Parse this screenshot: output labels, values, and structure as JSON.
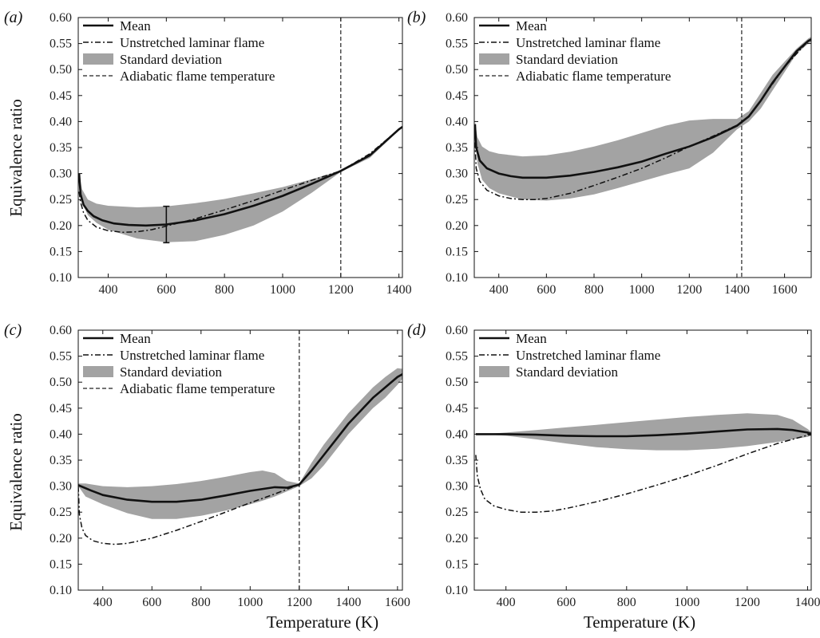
{
  "figure": {
    "xlabel": "Temperature (K)",
    "ylabel": "Equivalence ratio"
  },
  "colors": {
    "mean": "#111111",
    "laminar": "#111111",
    "std_band": "#a3a3a3",
    "adiabatic": "#222222"
  },
  "chart_data": [
    {
      "type": "line",
      "panel_label": "(a)",
      "xlabel": "",
      "ylabel": "Equivalence ratio",
      "xlim": [
        290,
        1420
      ],
      "ylim": [
        0.1,
        0.6
      ],
      "xticks": [
        400,
        600,
        800,
        1000,
        1200,
        1400
      ],
      "yticks": [
        0.1,
        0.15,
        0.2,
        0.25,
        0.3,
        0.35,
        0.4,
        0.45,
        0.5,
        0.55,
        0.6
      ],
      "legend": {
        "position": "top-left",
        "entries": [
          "Mean",
          "Unstretched laminar flame",
          "Standard deviation",
          "Adiabatic flame temperature"
        ]
      },
      "adiabatic_temperature": 1200,
      "error_bar": {
        "x": 600,
        "low": 0.167,
        "high": 0.237
      },
      "series": [
        {
          "name": "Mean",
          "x": [
            300,
            305,
            315,
            330,
            350,
            380,
            420,
            470,
            530,
            600,
            700,
            800,
            900,
            1000,
            1100,
            1200,
            1300,
            1400,
            1420
          ],
          "y": [
            0.3,
            0.26,
            0.24,
            0.228,
            0.218,
            0.21,
            0.204,
            0.201,
            0.2,
            0.202,
            0.21,
            0.222,
            0.238,
            0.257,
            0.28,
            0.305,
            0.335,
            0.385,
            0.393
          ]
        },
        {
          "name": "Unstretched laminar flame",
          "x": [
            300,
            305,
            315,
            330,
            360,
            400,
            450,
            500,
            550,
            600,
            700,
            800,
            900,
            1000,
            1100,
            1200,
            1300,
            1400,
            1420
          ],
          "y": [
            0.265,
            0.245,
            0.225,
            0.21,
            0.197,
            0.19,
            0.187,
            0.188,
            0.192,
            0.199,
            0.213,
            0.23,
            0.248,
            0.268,
            0.287,
            0.305,
            0.338,
            0.385,
            0.393
          ]
        },
        {
          "name": "Standard deviation",
          "x": [
            300,
            310,
            330,
            360,
            400,
            500,
            600,
            700,
            800,
            900,
            1000,
            1100,
            1200,
            1300,
            1400,
            1420
          ],
          "upper": [
            0.3,
            0.27,
            0.25,
            0.242,
            0.238,
            0.235,
            0.237,
            0.243,
            0.251,
            0.262,
            0.274,
            0.289,
            0.306,
            0.338,
            0.385,
            0.393
          ],
          "lower": [
            0.3,
            0.245,
            0.22,
            0.205,
            0.192,
            0.175,
            0.168,
            0.17,
            0.182,
            0.2,
            0.227,
            0.263,
            0.303,
            0.33,
            0.383,
            0.393
          ]
        }
      ]
    },
    {
      "type": "line",
      "panel_label": "(b)",
      "xlabel": "",
      "ylabel": "",
      "xlim": [
        290,
        1720
      ],
      "ylim": [
        0.1,
        0.6
      ],
      "xticks": [
        400,
        600,
        800,
        1000,
        1200,
        1400,
        1600
      ],
      "yticks": [
        0.1,
        0.15,
        0.2,
        0.25,
        0.3,
        0.35,
        0.4,
        0.45,
        0.5,
        0.55,
        0.6
      ],
      "legend": {
        "position": "top-left",
        "entries": [
          "Mean",
          "Unstretched laminar flame",
          "Standard deviation",
          "Adiabatic flame temperature"
        ]
      },
      "adiabatic_temperature": 1420,
      "series": [
        {
          "name": "Mean",
          "x": [
            300,
            305,
            320,
            350,
            400,
            450,
            500,
            600,
            700,
            800,
            900,
            1000,
            1100,
            1200,
            1300,
            1400,
            1450,
            1500,
            1550,
            1600,
            1650,
            1700,
            1720
          ],
          "y": [
            0.395,
            0.35,
            0.325,
            0.31,
            0.3,
            0.295,
            0.292,
            0.292,
            0.296,
            0.303,
            0.312,
            0.323,
            0.338,
            0.352,
            0.37,
            0.392,
            0.41,
            0.44,
            0.475,
            0.505,
            0.535,
            0.555,
            0.56
          ]
        },
        {
          "name": "Unstretched laminar flame",
          "x": [
            300,
            305,
            320,
            350,
            400,
            450,
            500,
            550,
            600,
            700,
            800,
            900,
            1000,
            1100,
            1200,
            1300,
            1400,
            1450,
            1500,
            1600,
            1700,
            1720
          ],
          "y": [
            0.36,
            0.31,
            0.285,
            0.268,
            0.257,
            0.252,
            0.25,
            0.25,
            0.252,
            0.262,
            0.277,
            0.293,
            0.31,
            0.33,
            0.352,
            0.372,
            0.393,
            0.41,
            0.44,
            0.505,
            0.555,
            0.56
          ]
        },
        {
          "name": "Standard deviation",
          "x": [
            300,
            310,
            330,
            360,
            400,
            500,
            600,
            700,
            800,
            900,
            1000,
            1100,
            1200,
            1300,
            1400,
            1450,
            1500,
            1550,
            1600,
            1650,
            1700,
            1720
          ],
          "upper": [
            0.4,
            0.37,
            0.352,
            0.343,
            0.338,
            0.333,
            0.335,
            0.342,
            0.352,
            0.364,
            0.378,
            0.392,
            0.402,
            0.405,
            0.405,
            0.42,
            0.455,
            0.49,
            0.515,
            0.54,
            0.56,
            0.565
          ],
          "lower": [
            0.4,
            0.32,
            0.288,
            0.272,
            0.262,
            0.25,
            0.248,
            0.252,
            0.26,
            0.272,
            0.285,
            0.298,
            0.31,
            0.34,
            0.385,
            0.4,
            0.425,
            0.46,
            0.495,
            0.53,
            0.55,
            0.555
          ]
        }
      ]
    },
    {
      "type": "line",
      "panel_label": "(c)",
      "xlabel": "Temperature (K)",
      "ylabel": "Equivalence ratio",
      "xlim": [
        300,
        1630
      ],
      "ylim": [
        0.1,
        0.6
      ],
      "xticks": [
        400,
        600,
        800,
        1000,
        1200,
        1400,
        1600
      ],
      "yticks": [
        0.1,
        0.15,
        0.2,
        0.25,
        0.3,
        0.35,
        0.4,
        0.45,
        0.5,
        0.55,
        0.6
      ],
      "legend": {
        "position": "top-left",
        "entries": [
          "Mean",
          "Unstretched laminar flame",
          "Standard deviation",
          "Adiabatic flame temperature"
        ]
      },
      "adiabatic_temperature": 1200,
      "series": [
        {
          "name": "Mean",
          "x": [
            300,
            350,
            400,
            500,
            600,
            700,
            800,
            900,
            1000,
            1100,
            1150,
            1200,
            1250,
            1300,
            1350,
            1400,
            1450,
            1500,
            1550,
            1600,
            1630
          ],
          "y": [
            0.302,
            0.292,
            0.283,
            0.274,
            0.27,
            0.27,
            0.274,
            0.282,
            0.291,
            0.298,
            0.297,
            0.303,
            0.33,
            0.36,
            0.39,
            0.42,
            0.445,
            0.47,
            0.49,
            0.51,
            0.518
          ]
        },
        {
          "name": "Unstretched laminar flame",
          "x": [
            300,
            305,
            315,
            330,
            360,
            400,
            450,
            500,
            600,
            700,
            800,
            900,
            1000,
            1100,
            1200,
            1250,
            1300,
            1400,
            1500,
            1600,
            1630
          ],
          "y": [
            0.3,
            0.245,
            0.22,
            0.205,
            0.195,
            0.19,
            0.188,
            0.19,
            0.2,
            0.215,
            0.232,
            0.25,
            0.268,
            0.285,
            0.303,
            0.33,
            0.36,
            0.42,
            0.47,
            0.51,
            0.518
          ]
        },
        {
          "name": "Standard deviation",
          "x": [
            300,
            330,
            400,
            500,
            600,
            700,
            800,
            900,
            1000,
            1050,
            1100,
            1150,
            1200,
            1250,
            1300,
            1400,
            1500,
            1550,
            1600,
            1630
          ],
          "upper": [
            0.305,
            0.305,
            0.3,
            0.298,
            0.3,
            0.304,
            0.31,
            0.318,
            0.327,
            0.33,
            0.325,
            0.31,
            0.305,
            0.345,
            0.38,
            0.44,
            0.49,
            0.51,
            0.527,
            0.525
          ],
          "lower": [
            0.3,
            0.28,
            0.265,
            0.248,
            0.237,
            0.237,
            0.243,
            0.253,
            0.265,
            0.272,
            0.28,
            0.29,
            0.3,
            0.315,
            0.34,
            0.4,
            0.45,
            0.47,
            0.495,
            0.512
          ]
        }
      ]
    },
    {
      "type": "line",
      "panel_label": "(d)",
      "xlabel": "Temperature (K)",
      "ylabel": "",
      "xlim": [
        290,
        1420
      ],
      "ylim": [
        0.1,
        0.6
      ],
      "xticks": [
        400,
        600,
        800,
        1000,
        1200,
        1400
      ],
      "yticks": [
        0.1,
        0.15,
        0.2,
        0.25,
        0.3,
        0.35,
        0.4,
        0.45,
        0.5,
        0.55,
        0.6
      ],
      "legend": {
        "position": "top-left",
        "entries": [
          "Mean",
          "Unstretched laminar flame",
          "Standard deviation"
        ]
      },
      "series": [
        {
          "name": "Mean",
          "x": [
            300,
            350,
            400,
            500,
            600,
            700,
            800,
            900,
            1000,
            1100,
            1200,
            1300,
            1350,
            1400,
            1420
          ],
          "y": [
            0.4,
            0.4,
            0.4,
            0.399,
            0.397,
            0.396,
            0.396,
            0.398,
            0.401,
            0.405,
            0.409,
            0.41,
            0.408,
            0.403,
            0.399
          ]
        },
        {
          "name": "Unstretched laminar flame",
          "x": [
            300,
            305,
            315,
            330,
            360,
            400,
            450,
            500,
            550,
            600,
            700,
            800,
            900,
            1000,
            1100,
            1200,
            1300,
            1400,
            1420
          ],
          "y": [
            0.36,
            0.32,
            0.295,
            0.275,
            0.262,
            0.255,
            0.25,
            0.25,
            0.252,
            0.257,
            0.27,
            0.285,
            0.302,
            0.32,
            0.34,
            0.362,
            0.382,
            0.398,
            0.4
          ]
        },
        {
          "name": "Standard deviation",
          "x": [
            300,
            350,
            400,
            500,
            600,
            700,
            800,
            900,
            1000,
            1100,
            1200,
            1300,
            1350,
            1400,
            1420
          ],
          "upper": [
            0.4,
            0.401,
            0.403,
            0.408,
            0.413,
            0.418,
            0.423,
            0.428,
            0.433,
            0.437,
            0.44,
            0.437,
            0.428,
            0.41,
            0.4
          ],
          "lower": [
            0.4,
            0.399,
            0.397,
            0.39,
            0.382,
            0.375,
            0.371,
            0.369,
            0.369,
            0.372,
            0.377,
            0.385,
            0.39,
            0.395,
            0.398
          ]
        }
      ]
    }
  ]
}
